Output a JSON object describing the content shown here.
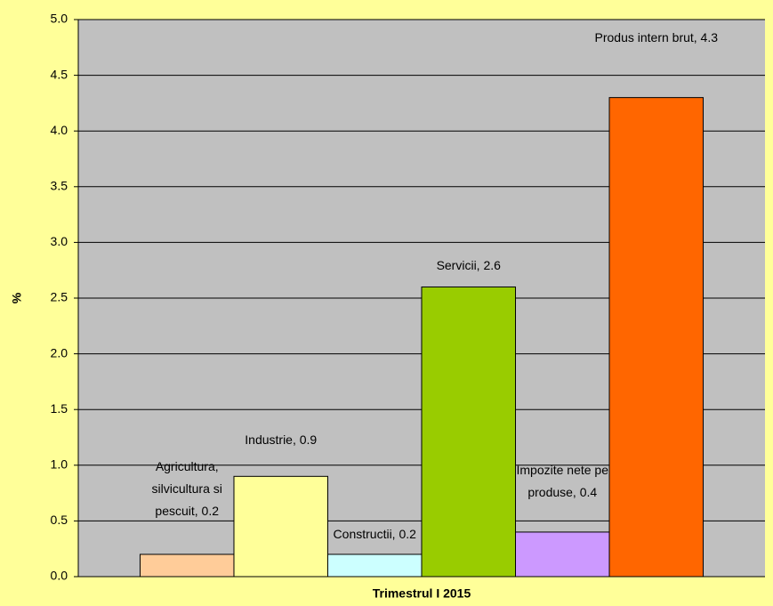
{
  "chart_data": {
    "type": "bar",
    "categories": [
      "Trimestrul I 2015"
    ],
    "ylabel": "%",
    "ylim": [
      0,
      5
    ],
    "yticks": [
      {
        "value": 0,
        "label": "0.0"
      },
      {
        "value": 0.5,
        "label": "0.5"
      },
      {
        "value": 1,
        "label": "1.0"
      },
      {
        "value": 1.5,
        "label": "1.5"
      },
      {
        "value": 2,
        "label": "2.0"
      },
      {
        "value": 2.5,
        "label": "2.5"
      },
      {
        "value": 3,
        "label": "3.0"
      },
      {
        "value": 3.5,
        "label": "3.5"
      },
      {
        "value": 4,
        "label": "4.0"
      },
      {
        "value": 4.5,
        "label": "4.5"
      },
      {
        "value": 5,
        "label": "5.0"
      }
    ],
    "grid": true,
    "series": [
      {
        "name": "Agricultura, silvicultura si pescuit",
        "color": "#ffcc99",
        "values": [
          0.2
        ],
        "value_labels": [
          "Agricultura, silvicultura si pescuit, 0.2"
        ]
      },
      {
        "name": "Industrie",
        "color": "#ffff99",
        "values": [
          0.9
        ],
        "value_labels": [
          "Industrie, 0.9"
        ]
      },
      {
        "name": "Constructii",
        "color": "#ccffff",
        "values": [
          0.2
        ],
        "value_labels": [
          "Constructii, 0.2"
        ]
      },
      {
        "name": "Servicii",
        "color": "#99cc00",
        "values": [
          2.6
        ],
        "value_labels": [
          "Servicii, 2.6"
        ]
      },
      {
        "name": "Impozite nete pe produse",
        "color": "#cc99ff",
        "values": [
          0.4
        ],
        "value_labels": [
          "Impozite nete pe produse, 0.4"
        ]
      },
      {
        "name": "Produs intern brut",
        "color": "#ff6600",
        "values": [
          4.3
        ],
        "value_labels": [
          "Produs intern brut, 4.3"
        ]
      }
    ]
  }
}
